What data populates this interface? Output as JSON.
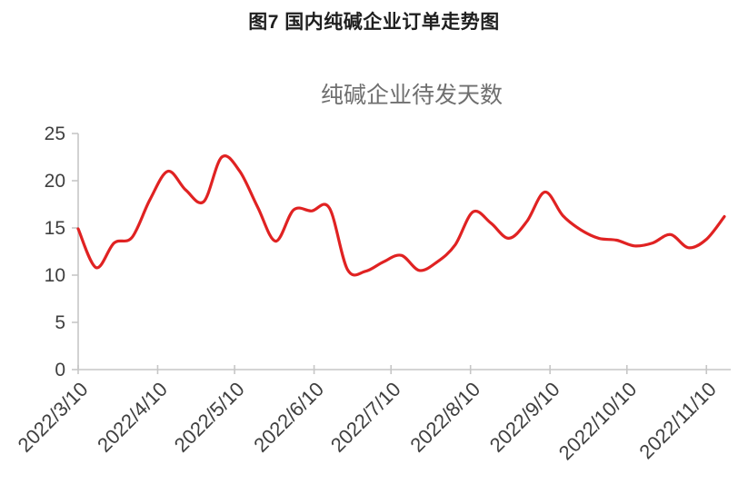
{
  "page": {
    "caption": "图7 国内纯碱企业订单走势图",
    "background": "#ffffff"
  },
  "chart_data": {
    "type": "line",
    "title": "纯碱企业待发天数",
    "xlabel": "",
    "ylabel": "",
    "ylim": [
      0,
      25
    ],
    "y_ticks": [
      0,
      5,
      10,
      15,
      20,
      25
    ],
    "x_tick_labels": [
      "2022/3/10",
      "2022/4/10",
      "2022/5/10",
      "2022/6/10",
      "2022/7/10",
      "2022/8/10",
      "2022/9/10",
      "2022/10/10",
      "2022/11/10"
    ],
    "x_tick_days": [
      0,
      31,
      61,
      92,
      122,
      153,
      184,
      214,
      245
    ],
    "grid": false,
    "legend_position": "none",
    "colors": {
      "series": "#e02222",
      "axis": "#c6c6c6",
      "tick_label": "#3f3f3f",
      "title": "#6f6f6f"
    },
    "series": [
      {
        "name": "纯碱企业待发天数",
        "color": "#e02222",
        "interval_days": 7,
        "start_label": "2022/3/10",
        "values": [
          14.9,
          10.8,
          13.4,
          14.0,
          18.0,
          21.0,
          19.0,
          17.8,
          22.5,
          21.0,
          17.2,
          13.6,
          16.9,
          16.8,
          17.1,
          10.6,
          10.4,
          11.4,
          12.1,
          10.5,
          11.4,
          13.2,
          16.7,
          15.5,
          13.9,
          15.7,
          18.8,
          16.3,
          14.8,
          13.9,
          13.7,
          13.1,
          13.4,
          14.3,
          12.9,
          13.8,
          16.2
        ]
      }
    ]
  }
}
